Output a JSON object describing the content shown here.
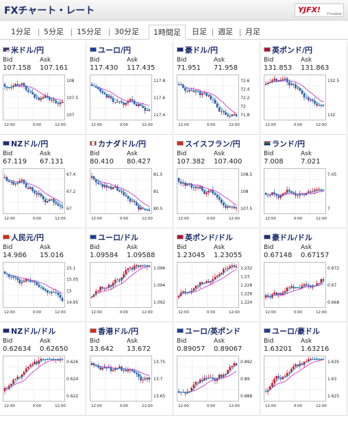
{
  "header": {
    "title": "FXチャート・レート",
    "logo": "YJFX!",
    "logo_sub": "Y!mobile"
  },
  "tabs": [
    {
      "label": "1分足",
      "active": false
    },
    {
      "label": "5分足",
      "active": false
    },
    {
      "label": "15分足",
      "active": false
    },
    {
      "label": "30分足",
      "active": false
    },
    {
      "label": "1時間足",
      "active": true
    },
    {
      "label": "日足",
      "active": false
    },
    {
      "label": "週足",
      "active": false
    },
    {
      "label": "月足",
      "active": false
    }
  ],
  "labels": {
    "bid": "Bid",
    "ask": "Ask"
  },
  "time_labels": [
    "12:00",
    "0:00",
    "12:00"
  ],
  "panels": [
    {
      "name": "米ドル/円",
      "bid": "107.158",
      "ask": "107.161",
      "flag": "us",
      "ticks": [
        "108",
        "107.5",
        "107"
      ],
      "trend": "down"
    },
    {
      "name": "ユーロ/円",
      "bid": "117.430",
      "ask": "117.435",
      "flag": "eu",
      "ticks": [
        "117.8",
        "117.6",
        "117.4"
      ],
      "trend": "down"
    },
    {
      "name": "豪ドル/円",
      "bid": "71.951",
      "ask": "71.958",
      "flag": "au",
      "ticks": [
        "72.6",
        "72.4",
        "72.2",
        "72",
        "71.8"
      ],
      "trend": "down"
    },
    {
      "name": "英ポンド/円",
      "bid": "131.853",
      "ask": "131.863",
      "flag": "gb",
      "ticks": [
        "132.5",
        "132"
      ],
      "trend": "down"
    },
    {
      "name": "NZドル/円",
      "bid": "67.119",
      "ask": "67.131",
      "flag": "nz",
      "ticks": [
        "67.4",
        "67.2",
        "67"
      ],
      "trend": "down"
    },
    {
      "name": "カナダドル/円",
      "bid": "80.410",
      "ask": "80.427",
      "flag": "ca",
      "ticks": [
        "81.5",
        "81",
        "80.5"
      ],
      "trend": "down"
    },
    {
      "name": "スイスフラン/円",
      "bid": "107.382",
      "ask": "107.400",
      "flag": "ch",
      "ticks": [
        "108.5",
        "108",
        "107.5"
      ],
      "trend": "down"
    },
    {
      "name": "ランド/円",
      "bid": "7.008",
      "ask": "7.021",
      "flag": "za",
      "ticks": [
        "7.05",
        "7"
      ],
      "trend": "flat"
    },
    {
      "name": "人民元/円",
      "bid": "14.986",
      "ask": "15.016",
      "flag": "cn",
      "ticks": [
        "15.1",
        "15.05",
        "15",
        "14.95"
      ],
      "trend": "down"
    },
    {
      "name": "ユーロ/ドル",
      "bid": "1.09584",
      "ask": "1.09588",
      "flag": "eu",
      "ticks": [
        "1.096",
        "1.094",
        "1.092"
      ],
      "trend": "up"
    },
    {
      "name": "英ポンド/ドル",
      "bid": "1.23045",
      "ask": "1.23055",
      "flag": "gb",
      "ticks": [
        "1.232",
        "1.23",
        "1.228",
        "1.226",
        "1.224"
      ],
      "trend": "up"
    },
    {
      "name": "豪ドル/ドル",
      "bid": "0.67148",
      "ask": "0.67157",
      "flag": "au",
      "ticks": [
        "0.672",
        "0.67",
        "0.668"
      ],
      "trend": "up"
    },
    {
      "name": "NZドル/ドル",
      "bid": "0.62634",
      "ask": "0.62650",
      "flag": "nz",
      "ticks": [
        "0.626",
        "0.624",
        "0.622"
      ],
      "trend": "up"
    },
    {
      "name": "香港ドル/円",
      "bid": "13.642",
      "ask": "13.672",
      "flag": "hk",
      "ticks": [
        "13.75",
        "13.7",
        "13.65"
      ],
      "trend": "down"
    },
    {
      "name": "ユーロ/英ポンド",
      "bid": "0.89057",
      "ask": "0.89067",
      "flag": "eu",
      "ticks": [
        "0.892",
        "0.89",
        "0.888"
      ],
      "trend": "up"
    },
    {
      "name": "ユーロ/豪ドル",
      "bid": "1.63201",
      "ask": "1.63216",
      "flag": "eu",
      "ticks": [
        "1.635",
        "1.63",
        "1.625"
      ],
      "trend": "up"
    }
  ],
  "colors": {
    "title": "#1a2a6c",
    "candle_up": "#d0021b",
    "candle_down": "#2a4ea0",
    "ma_long": "#cc33cc",
    "ma_short": "#19a3c8",
    "grid": "#e3e3e3"
  }
}
